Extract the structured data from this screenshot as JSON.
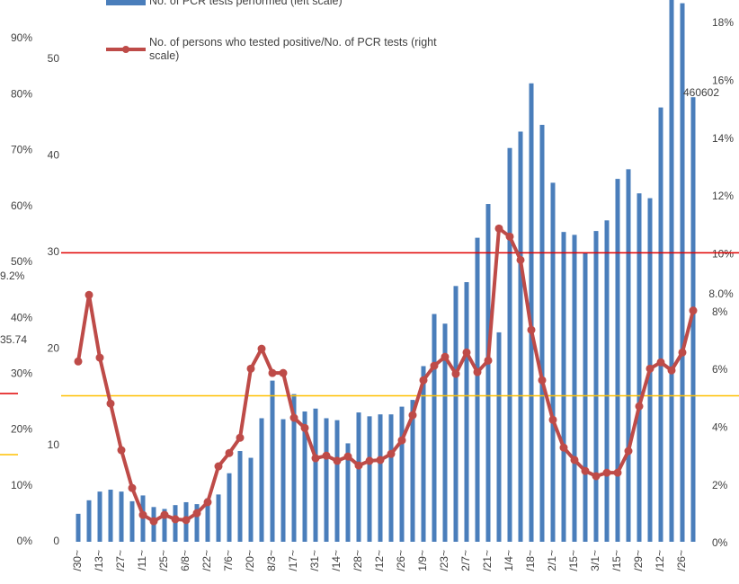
{
  "chart_data": {
    "type": "bar_line",
    "categories": [
      "/30~",
      null,
      "/13~",
      null,
      "/27~",
      null,
      "/11~",
      null,
      "/25~",
      null,
      "6/8~",
      null,
      "/22~",
      null,
      "7/6~",
      null,
      "/20~",
      null,
      "8/3~",
      null,
      "/17~",
      null,
      "/31~",
      null,
      "/14~",
      null,
      "/28~",
      null,
      "/12~",
      null,
      "/26~",
      null,
      "1/9~",
      null,
      "/23~",
      null,
      "2/7~",
      null,
      "/21~",
      null,
      "1/4~",
      null,
      "/18~",
      null,
      "2/1~",
      null,
      "/15~",
      null,
      "3/1~",
      null,
      "/15~",
      null,
      "/29~",
      null,
      "/12~",
      null,
      "/26~",
      null
    ],
    "series": [
      {
        "name": "No. of PCR tests performed (left scale)",
        "color": "#4a7ebb",
        "values": [
          2.9,
          4.3,
          5.2,
          5.4,
          5.2,
          4.2,
          4.8,
          3.6,
          3.4,
          3.8,
          4.1,
          3.9,
          4.5,
          4.9,
          7.1,
          9.4,
          8.7,
          12.8,
          16.7,
          12.7,
          15.3,
          13.5,
          13.8,
          12.8,
          12.6,
          10.2,
          13.4,
          13.0,
          13.2,
          13.2,
          14.0,
          14.7,
          18.2,
          23.6,
          22.6,
          26.5,
          26.9,
          31.5,
          35.0,
          21.7,
          40.8,
          42.5,
          47.5,
          43.2,
          37.2,
          32.1,
          31.8,
          29.9,
          32.2,
          33.3,
          37.6,
          38.6,
          36.1,
          35.6,
          45.0,
          57.0,
          55.8,
          46.06
        ]
      },
      {
        "name": "No. of persons who tested positive/No. of PCR tests (right scale)",
        "color": "#be4b48",
        "axis": "y2",
        "values": [
          6.24,
          8.54,
          6.37,
          4.78,
          3.17,
          1.86,
          0.93,
          0.71,
          0.93,
          0.78,
          0.75,
          0.99,
          1.37,
          2.61,
          3.07,
          3.6,
          5.99,
          6.68,
          5.84,
          5.84,
          4.29,
          3.94,
          2.89,
          2.98,
          2.8,
          2.95,
          2.64,
          2.8,
          2.83,
          3.04,
          3.51,
          4.38,
          5.59,
          6.09,
          6.4,
          5.81,
          6.55,
          5.87,
          6.27,
          10.84,
          10.56,
          9.75,
          7.33,
          5.59,
          4.22,
          3.26,
          2.83,
          2.45,
          2.27,
          2.39,
          2.39,
          3.14,
          4.69,
          5.99,
          6.21,
          5.93,
          6.55,
          8.0
        ]
      }
    ],
    "ylim": [
      0,
      53.9
    ],
    "yticks": [
      0,
      10,
      20,
      30,
      40,
      50
    ],
    "y2lim": [
      0,
      18
    ],
    "y2ticks": [
      {
        "value": 0,
        "label": "0%"
      },
      {
        "value": 2,
        "label": "2%"
      },
      {
        "value": 4,
        "label": "4%"
      },
      {
        "value": 6,
        "label": "6%"
      },
      {
        "value": 8,
        "label": "8%"
      },
      {
        "value": 10,
        "label": "10%"
      },
      {
        "value": 12,
        "label": "12%"
      },
      {
        "value": 14,
        "label": "14%"
      },
      {
        "value": 16,
        "label": "16%"
      },
      {
        "value": 18,
        "label": "18%"
      }
    ],
    "reference_lines": [
      {
        "value": 10,
        "axis": "y2",
        "color": "#e00000"
      },
      {
        "value": 5.05,
        "axis": "y2",
        "color": "#ffc000"
      }
    ],
    "annotations": [
      {
        "text": "460602"
      },
      {
        "text": "8.0%"
      }
    ],
    "background_axis": {
      "ylim": [
        0,
        90
      ],
      "yticks": [
        {
          "value": 0,
          "label": "0%"
        },
        {
          "value": 10,
          "label": "10%"
        },
        {
          "value": 20,
          "label": "20%"
        },
        {
          "value": 30,
          "label": "30%"
        },
        {
          "value": 40,
          "label": "40%"
        },
        {
          "value": 50,
          "label": "50%"
        },
        {
          "value": 60,
          "label": "60%"
        },
        {
          "value": 70,
          "label": "70%"
        },
        {
          "value": 80,
          "label": "80%"
        },
        {
          "value": 90,
          "label": "90%"
        }
      ],
      "fragments": [
        "9.2%",
        "35.74"
      ]
    }
  }
}
